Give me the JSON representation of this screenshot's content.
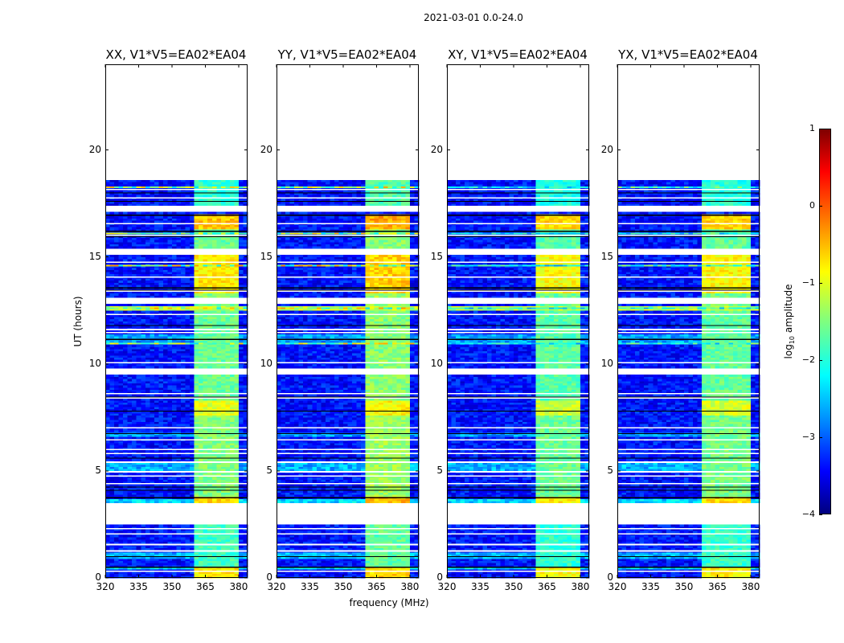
{
  "suptitle": "2021-03-01 0.0-24.0",
  "chart_data": {
    "type": "heatmap",
    "xlabel": "frequency (MHz)",
    "ylabel": "UT (hours)",
    "xlim": [
      320,
      384
    ],
    "ylim": [
      0,
      24
    ],
    "xticks": [
      "320",
      "335",
      "350",
      "365",
      "380"
    ],
    "yticks": [
      "0",
      "5",
      "10",
      "15",
      "20"
    ],
    "xtick_values": [
      320,
      335,
      350,
      365,
      380
    ],
    "ytick_values": [
      0,
      5,
      10,
      15,
      20
    ],
    "data_end_hour": 18.6,
    "flagged_intervals": [
      [
        2.5,
        3.5
      ],
      [
        9.45,
        9.8
      ],
      [
        12.75,
        13.1
      ],
      [
        15.1,
        15.4
      ],
      [
        17.05,
        17.35
      ]
    ],
    "thin_flag_hours": [
      0.3,
      1.25,
      1.55,
      2.05,
      2.3,
      4.4,
      4.75,
      4.95,
      5.4,
      5.8,
      6.0,
      6.45,
      7.0,
      8.4,
      8.6,
      10.05,
      11.45,
      11.6,
      12.3,
      13.4,
      14.05,
      14.75,
      16.0,
      16.55,
      17.75,
      18.15
    ],
    "dark_line_hours": [
      0.5,
      1.0,
      3.75,
      4.1,
      4.25,
      5.6,
      6.75,
      7.8,
      8.45,
      11.15,
      11.8,
      13.45,
      13.55,
      15.95,
      16.2,
      16.95,
      17.6,
      18.0
    ],
    "background_level": -3.3,
    "bright_bands": [
      [
        0.4,
        0.55,
        -2.3
      ],
      [
        0.95,
        1.2,
        -2.5
      ],
      [
        3.55,
        3.75,
        -2.3
      ],
      [
        4.95,
        5.35,
        -2.5
      ],
      [
        6.6,
        6.75,
        -2.6
      ],
      [
        11.0,
        11.35,
        -2.6
      ],
      [
        12.5,
        12.7,
        -1.2
      ]
    ],
    "rfi_lines": [
      [
        10.95,
        -0.9
      ],
      [
        12.6,
        -0.8
      ],
      [
        14.6,
        -0.8
      ],
      [
        16.1,
        -1.0
      ],
      [
        18.25,
        -0.9
      ]
    ],
    "rfi_band_mhz": [
      360.5,
      380
    ],
    "rfi_notch_mhz": [
      366,
      372,
      376
    ],
    "rfi_band_levels": [
      [
        0,
        0.55,
        -0.8
      ],
      [
        0.55,
        2.5,
        -1.8
      ],
      [
        3.5,
        3.8,
        -0.7
      ],
      [
        3.8,
        7.6,
        -1.5
      ],
      [
        7.6,
        8.3,
        -1.0
      ],
      [
        8.3,
        12.5,
        -1.6
      ],
      [
        12.5,
        13.3,
        -1.5
      ],
      [
        13.3,
        15.1,
        -0.8
      ],
      [
        15.1,
        16.3,
        -1.6
      ],
      [
        16.3,
        17.0,
        -0.6
      ],
      [
        17.35,
        18.6,
        -1.9
      ]
    ],
    "colorbar": {
      "label": "log10 amplitude",
      "label_main": "log",
      "label_sub": "10",
      "label_rest": " amplitude",
      "range": [
        -4,
        1
      ],
      "ticks": [
        "1",
        "0",
        "−1",
        "−2",
        "−3",
        "−4"
      ],
      "tick_values": [
        1,
        0,
        -1,
        -2,
        -3,
        -4
      ],
      "colormap": "jet"
    },
    "panels": [
      {
        "title": "XX, V1*V5=EA02*EA04",
        "band_offset": 0.0,
        "line_strength": 1.0,
        "band_start_mhz": 360.5
      },
      {
        "title": "YY, V1*V5=EA02*EA04",
        "band_offset": 0.15,
        "line_strength": 1.0,
        "band_start_mhz": 360.5
      },
      {
        "title": "XY, V1*V5=EA02*EA04",
        "band_offset": -0.1,
        "line_strength": 0.6,
        "band_start_mhz": 360.5
      },
      {
        "title": "YX, V1*V5=EA02*EA04",
        "band_offset": -0.05,
        "line_strength": 0.7,
        "band_start_mhz": 359.0
      }
    ]
  }
}
